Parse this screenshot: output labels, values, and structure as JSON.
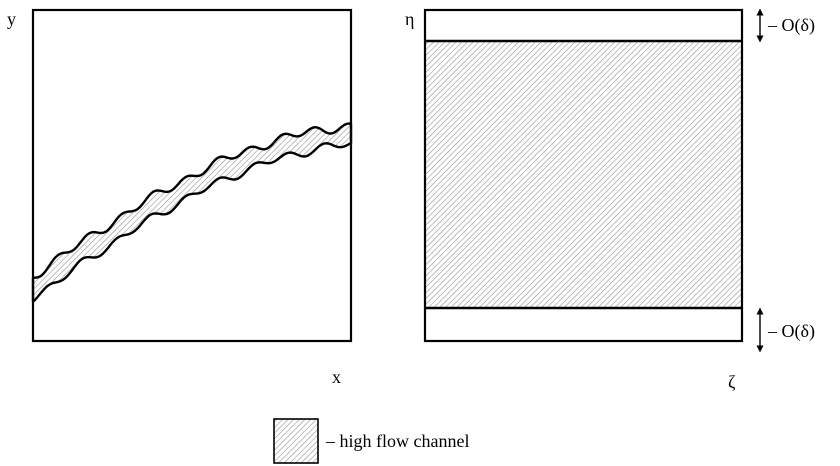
{
  "left_panel": {
    "y_axis_label": "y",
    "x_axis_label": "x"
  },
  "right_panel": {
    "y_axis_label": "η",
    "x_axis_label": "ζ",
    "top_boundary_label": "– O(δ)",
    "bottom_boundary_label": "– O(δ)"
  },
  "legend": {
    "label": "– high flow channel"
  },
  "colors": {
    "stroke": "#000000",
    "hatch": "#8a8a8a",
    "background": "#ffffff"
  }
}
